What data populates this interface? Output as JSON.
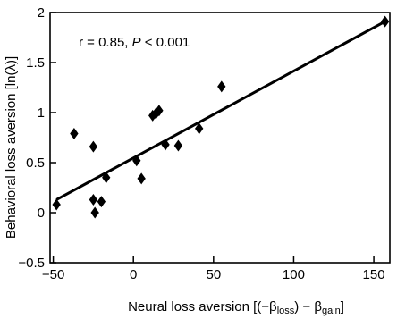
{
  "chart_data": {
    "type": "scatter",
    "xlabel": "Neural loss aversion [(−β",
    "xlabel_sub1": "loss",
    "xlabel_mid": ") − β",
    "xlabel_sub2": "gain",
    "xlabel_end": "]",
    "ylabel": "Behavioral loss aversion [ln(λ)]",
    "annotation_prefix": "r = 0.85, ",
    "annotation_p": "P",
    "annotation_suffix": " < 0.001",
    "xlim": [
      -52,
      160
    ],
    "ylim": [
      -0.5,
      2.0
    ],
    "x_ticks": [
      -50,
      0,
      50,
      100,
      150
    ],
    "y_ticks": [
      -0.5,
      0,
      0.5,
      1,
      1.5,
      2
    ],
    "x_tick_labels": [
      "−50",
      "0",
      "50",
      "100",
      "150"
    ],
    "y_tick_labels": [
      "−0.5",
      "0",
      "0.5",
      "1",
      "1.5",
      "2"
    ],
    "points": [
      {
        "x": -48,
        "y": 0.08
      },
      {
        "x": -37,
        "y": 0.79
      },
      {
        "x": -25,
        "y": 0.66
      },
      {
        "x": -25,
        "y": 0.13
      },
      {
        "x": -24,
        "y": 0.0
      },
      {
        "x": -20,
        "y": 0.11
      },
      {
        "x": -17,
        "y": 0.35
      },
      {
        "x": 2,
        "y": 0.52
      },
      {
        "x": 5,
        "y": 0.34
      },
      {
        "x": 12,
        "y": 0.97
      },
      {
        "x": 14,
        "y": 0.99
      },
      {
        "x": 16,
        "y": 1.02
      },
      {
        "x": 20,
        "y": 0.68
      },
      {
        "x": 28,
        "y": 0.67
      },
      {
        "x": 41,
        "y": 0.84
      },
      {
        "x": 55,
        "y": 1.26
      },
      {
        "x": 157,
        "y": 1.91
      }
    ],
    "fit_line": {
      "x": [
        -48,
        157
      ],
      "y": [
        0.13,
        1.91
      ]
    },
    "grid": false,
    "marker": "diamond",
    "color": "#000000"
  }
}
